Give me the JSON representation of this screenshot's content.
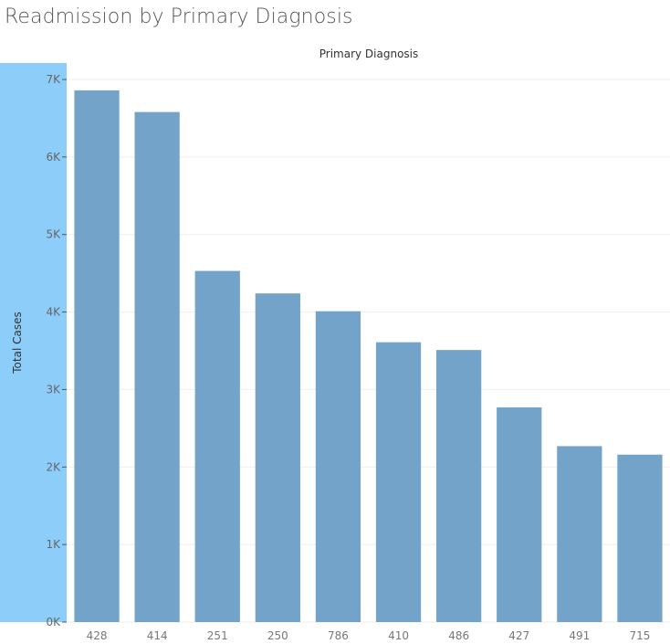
{
  "title": "Readmission by Primary Diagnosis",
  "colors": {
    "bar": "#73a3c9",
    "axis_band": "#8dcdf9",
    "gridline": "#eeeeee"
  },
  "chart_data": {
    "type": "bar",
    "title": "Readmission by Primary Diagnosis",
    "xlabel": "Primary Diagnosis",
    "ylabel": "Total Cases",
    "categories": [
      "428",
      "414",
      "251",
      "250",
      "786",
      "410",
      "486",
      "427",
      "491",
      "715"
    ],
    "values": [
      6860,
      6580,
      4530,
      4240,
      4010,
      3610,
      3510,
      2770,
      2270,
      2160
    ],
    "ylim": [
      0,
      7000
    ],
    "yticks": [
      0,
      1000,
      2000,
      3000,
      4000,
      5000,
      6000,
      7000
    ],
    "ytick_labels": [
      "0K",
      "1K",
      "2K",
      "3K",
      "4K",
      "5K",
      "6K",
      "7K"
    ],
    "grid": true,
    "legend": "none"
  }
}
